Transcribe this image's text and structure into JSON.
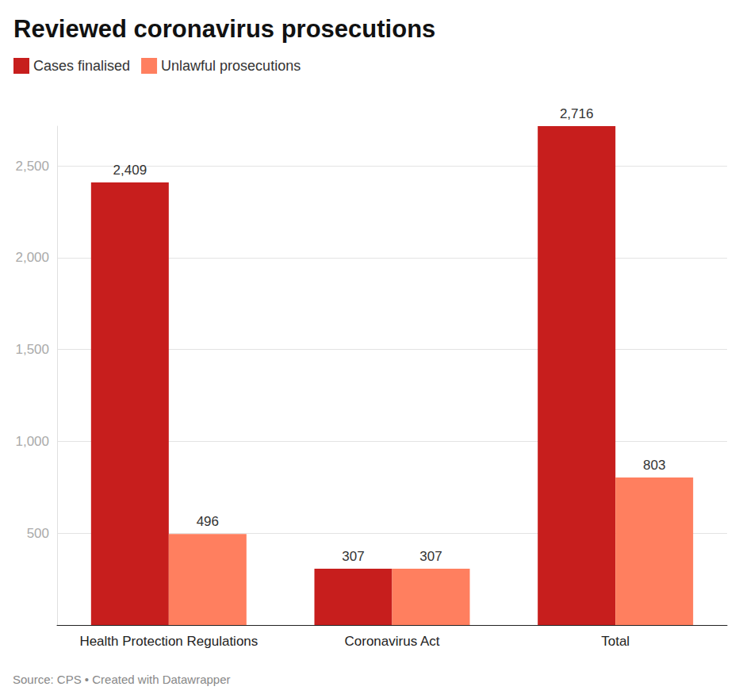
{
  "chart_data": {
    "type": "bar",
    "title": "Reviewed coronavirus prosecutions",
    "categories": [
      "Health Protection Regulations",
      "Coronavirus Act",
      "Total"
    ],
    "series": [
      {
        "name": "Cases finalised",
        "color": "#c71e1d",
        "values": [
          2409,
          307,
          2716
        ],
        "value_labels": [
          "2,409",
          "307",
          "2,716"
        ]
      },
      {
        "name": "Unlawful prosecutions",
        "color": "#ff7f5f",
        "values": [
          496,
          307,
          803
        ],
        "value_labels": [
          "496",
          "307",
          "803"
        ]
      }
    ],
    "ylim": [
      0,
      2716
    ],
    "yticks": [
      500,
      {
        "value": 1000,
        "label": "1,000"
      },
      {
        "value": 1500,
        "label": "1,500"
      },
      {
        "value": 2000,
        "label": "2,000"
      },
      {
        "value": 2500,
        "label": "2,500"
      }
    ],
    "grid": true,
    "legend": "top-left",
    "data_labels": true,
    "source": "Source: CPS • Created with Datawrapper"
  }
}
